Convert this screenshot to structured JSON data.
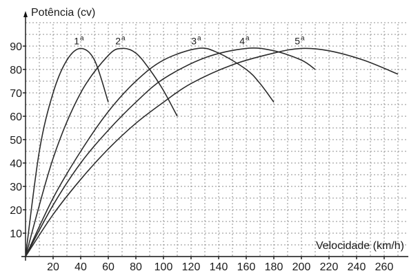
{
  "chart_data": {
    "type": "line",
    "title": "",
    "xlabel": "Velocidade (km/h)",
    "ylabel": "Potência (cv)",
    "xlim": [
      0,
      275
    ],
    "ylim": [
      0,
      100
    ],
    "x_ticks": [
      20,
      40,
      60,
      80,
      100,
      120,
      140,
      160,
      180,
      200,
      220,
      240,
      260
    ],
    "y_ticks": [
      10,
      20,
      30,
      40,
      50,
      60,
      70,
      80,
      90
    ],
    "grid": true,
    "series": [
      {
        "name": "1ª",
        "label": "1",
        "sup": "a",
        "points": [
          [
            0,
            0
          ],
          [
            10,
            45
          ],
          [
            20,
            70
          ],
          [
            30,
            84
          ],
          [
            40,
            89
          ],
          [
            50,
            84
          ],
          [
            60,
            66
          ]
        ]
      },
      {
        "name": "2ª",
        "label": "2",
        "sup": "a",
        "points": [
          [
            0,
            0
          ],
          [
            20,
            42
          ],
          [
            40,
            70
          ],
          [
            60,
            86
          ],
          [
            70,
            89
          ],
          [
            80,
            87
          ],
          [
            90,
            80
          ],
          [
            100,
            71
          ],
          [
            110,
            60
          ]
        ]
      },
      {
        "name": "3ª",
        "label": "3",
        "sup": "a",
        "points": [
          [
            0,
            0
          ],
          [
            20,
            25
          ],
          [
            40,
            45
          ],
          [
            60,
            62
          ],
          [
            80,
            75
          ],
          [
            100,
            84
          ],
          [
            125,
            89
          ],
          [
            140,
            87
          ],
          [
            160,
            80
          ],
          [
            170,
            74
          ],
          [
            180,
            66
          ]
        ]
      },
      {
        "name": "4ª",
        "label": "4",
        "sup": "a",
        "points": [
          [
            0,
            0
          ],
          [
            20,
            22
          ],
          [
            40,
            40
          ],
          [
            60,
            54
          ],
          [
            80,
            66
          ],
          [
            100,
            76
          ],
          [
            130,
            85
          ],
          [
            160,
            89
          ],
          [
            180,
            88
          ],
          [
            200,
            84
          ],
          [
            210,
            80
          ]
        ]
      },
      {
        "name": "5ª",
        "label": "5",
        "sup": "a",
        "points": [
          [
            0,
            0
          ],
          [
            20,
            18
          ],
          [
            40,
            33
          ],
          [
            60,
            46
          ],
          [
            80,
            57
          ],
          [
            100,
            66
          ],
          [
            120,
            74
          ],
          [
            150,
            82
          ],
          [
            180,
            87
          ],
          [
            200,
            89
          ],
          [
            220,
            88
          ],
          [
            245,
            84
          ],
          [
            270,
            78
          ]
        ]
      }
    ]
  }
}
